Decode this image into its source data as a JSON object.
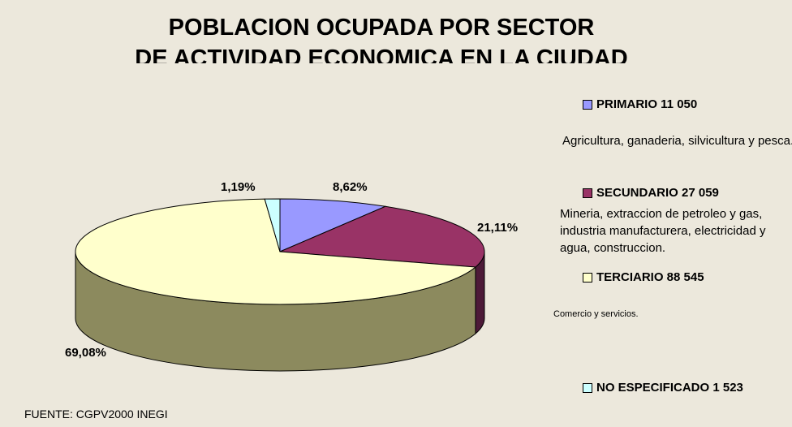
{
  "chart_data": {
    "type": "pie",
    "title": [
      "POBLACION OCUPADA POR SECTOR",
      "DE ACTIVIDAD ECONOMICA EN LA CIUDAD"
    ],
    "categories": [
      "PRIMARIO 11 050",
      "SECUNDARIO 27 059",
      "TERCIARIO 88 545",
      "NO ESPECIFICADO 1 523"
    ],
    "descriptions": [
      "Agricultura, ganaderia, silvicultura y pesca.",
      "Mineria, extraccion de petroleo y gas, industria manufacturera, electricidad y agua, construccion.",
      "Comercio y servicios.",
      null
    ],
    "values": [
      8.62,
      21.11,
      69.08,
      1.19
    ],
    "value_labels": [
      "8,62%",
      "21,11%",
      "69,08%",
      "1,19%"
    ],
    "colors": [
      "#9999ff",
      "#993366",
      "#ffffcc",
      "#ccffff"
    ],
    "source": "FUENTE: CGPV2000 INEGI"
  }
}
